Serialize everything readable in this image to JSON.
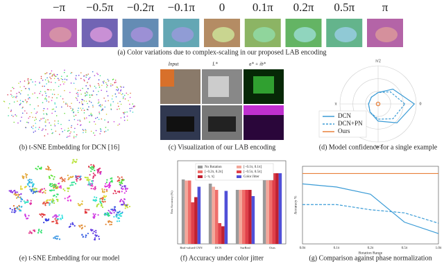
{
  "variations": {
    "labels": [
      "−π",
      "−0.5π",
      "−0.2π",
      "−0.1π",
      "0",
      "0.1π",
      "0.2π",
      "0.5π",
      "π"
    ],
    "caption": "(a) Color variations due to complex-scaling in our proposed LAB encoding"
  },
  "lab": {
    "headers": [
      "Input",
      "L*",
      "a* + ib*"
    ],
    "caption": "(c) Visualization of our LAB encoding"
  },
  "tsne": {
    "dcn_caption": "(b) t-SNE Embedding for DCN [16]",
    "ours_caption": "(e) t-SNE Embedding for our model"
  },
  "chart_data": [
    {
      "type": "polar",
      "title": "(d) Model confidence for a single example",
      "theta_labels": [
        "π/2",
        "π",
        "0",
        "3π/2"
      ],
      "theta": [
        0,
        45,
        90,
        135,
        180,
        225,
        270,
        315
      ],
      "rlim": [
        0,
        1
      ],
      "series": [
        {
          "name": "DCN",
          "color": "#3a9bd6",
          "dash": false,
          "values": [
            0.95,
            0.55,
            0.3,
            0.25,
            0.25,
            0.3,
            0.45,
            0.7
          ]
        },
        {
          "name": "DCN+PN",
          "color": "#3a9bd6",
          "dash": true,
          "values": [
            0.7,
            0.45,
            0.3,
            0.25,
            0.25,
            0.3,
            0.4,
            0.55
          ]
        },
        {
          "name": "Ours",
          "color": "#e8803a",
          "dash": false,
          "values": [
            0.05,
            0.05,
            0.05,
            0.05,
            0.05,
            0.05,
            0.05,
            0.05
          ]
        }
      ]
    },
    {
      "type": "bar",
      "title": "(f) Accuracy under color jitter",
      "y_label": "Test Accuracy (%)",
      "categories": [
        "Real-valued CNN",
        "DCN",
        "SurReal",
        "Ours"
      ],
      "ylim": [
        0,
        80
      ],
      "series": [
        {
          "name": "No Rotation",
          "color": "#9a9a9a",
          "values": [
            62,
            58,
            52,
            68
          ]
        },
        {
          "name": "[−0.1π, 0.1π]",
          "color": "#f4a79a",
          "values": [
            61,
            55,
            52,
            68
          ]
        },
        {
          "name": "[−0.2π, 0.2π]",
          "color": "#ef6e6a",
          "values": [
            61,
            52,
            52,
            68
          ]
        },
        {
          "name": "[−0.5π, 0.5π]",
          "color": "#e0404a",
          "values": [
            40,
            20,
            52,
            68
          ]
        },
        {
          "name": "[−π, π]",
          "color": "#c02030",
          "values": [
            45,
            17,
            52,
            68
          ]
        },
        {
          "name": "Color Jitter",
          "color": "#5050d8",
          "values": [
            55,
            51,
            46,
            68
          ]
        }
      ]
    },
    {
      "type": "line",
      "title": "(g) Comparison against phase normalization",
      "x_label": "Rotation Range",
      "y_label": "Accuracy %",
      "categories": [
        "0.0π",
        "0.1π",
        "0.2π",
        "0.5π",
        "1.0π"
      ],
      "ylim": [
        0,
        75
      ],
      "series": [
        {
          "name": "Ours",
          "color": "#e8803a",
          "dash": false,
          "values": [
            68,
            68,
            68,
            68,
            68
          ]
        },
        {
          "name": "DCN",
          "color": "#3a9bd6",
          "dash": false,
          "values": [
            58,
            55,
            48,
            21,
            10
          ]
        },
        {
          "name": "DCN+PN",
          "color": "#3a9bd6",
          "dash": true,
          "values": [
            38,
            38,
            33,
            30,
            20
          ]
        }
      ]
    }
  ]
}
